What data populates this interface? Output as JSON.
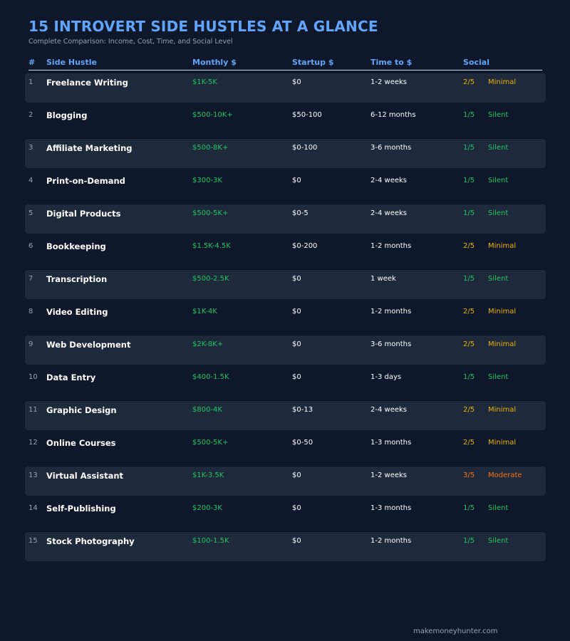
{
  "title": "15 INTROVERT SIDE HUSTLES AT A GLANCE",
  "subtitle": "Complete Comparison: Income, Cost, Time, and Social Level",
  "footer": "makemoneyhunter.com",
  "colors": {
    "title": "#60a5fa",
    "income": "#22c55e",
    "silent": "#22c55e",
    "minimal": "#eab308",
    "moderate": "#f97316"
  },
  "chart_data": {
    "type": "table",
    "columns": [
      "#",
      "Side Hustle",
      "Monthly $",
      "Startup $",
      "Time to $",
      "Social"
    ],
    "rows": [
      {
        "num": "1",
        "name": "Freelance Writing",
        "monthly": "$1K-5K",
        "startup": "$0",
        "time": "1-2 weeks",
        "score": "2/5",
        "level": "Minimal"
      },
      {
        "num": "2",
        "name": "Blogging",
        "monthly": "$500-10K+",
        "startup": "$50-100",
        "time": "6-12 months",
        "score": "1/5",
        "level": "Silent"
      },
      {
        "num": "3",
        "name": "Affiliate Marketing",
        "monthly": "$500-8K+",
        "startup": "$0-100",
        "time": "3-6 months",
        "score": "1/5",
        "level": "Silent"
      },
      {
        "num": "4",
        "name": "Print-on-Demand",
        "monthly": "$300-3K",
        "startup": "$0",
        "time": "2-4 weeks",
        "score": "1/5",
        "level": "Silent"
      },
      {
        "num": "5",
        "name": "Digital Products",
        "monthly": "$500-5K+",
        "startup": "$0-5",
        "time": "2-4 weeks",
        "score": "1/5",
        "level": "Silent"
      },
      {
        "num": "6",
        "name": "Bookkeeping",
        "monthly": "$1.5K-4.5K",
        "startup": "$0-200",
        "time": "1-2 months",
        "score": "2/5",
        "level": "Minimal"
      },
      {
        "num": "7",
        "name": "Transcription",
        "monthly": "$500-2.5K",
        "startup": "$0",
        "time": "1 week",
        "score": "1/5",
        "level": "Silent"
      },
      {
        "num": "8",
        "name": "Video Editing",
        "monthly": "$1K-4K",
        "startup": "$0",
        "time": "1-2 months",
        "score": "2/5",
        "level": "Minimal"
      },
      {
        "num": "9",
        "name": "Web Development",
        "monthly": "$2K-8K+",
        "startup": "$0",
        "time": "3-6 months",
        "score": "2/5",
        "level": "Minimal"
      },
      {
        "num": "10",
        "name": "Data Entry",
        "monthly": "$400-1.5K",
        "startup": "$0",
        "time": "1-3 days",
        "score": "1/5",
        "level": "Silent"
      },
      {
        "num": "11",
        "name": "Graphic Design",
        "monthly": "$800-4K",
        "startup": "$0-13",
        "time": "2-4 weeks",
        "score": "2/5",
        "level": "Minimal"
      },
      {
        "num": "12",
        "name": "Online Courses",
        "monthly": "$500-5K+",
        "startup": "$0-50",
        "time": "1-3 months",
        "score": "2/5",
        "level": "Minimal"
      },
      {
        "num": "13",
        "name": "Virtual Assistant",
        "monthly": "$1K-3.5K",
        "startup": "$0",
        "time": "1-2 weeks",
        "score": "3/5",
        "level": "Moderate"
      },
      {
        "num": "14",
        "name": "Self-Publishing",
        "monthly": "$200-3K",
        "startup": "$0",
        "time": "1-3 months",
        "score": "1/5",
        "level": "Silent"
      },
      {
        "num": "15",
        "name": "Stock Photography",
        "monthly": "$100-1.5K",
        "startup": "$0",
        "time": "1-2 months",
        "score": "1/5",
        "level": "Silent"
      }
    ]
  }
}
